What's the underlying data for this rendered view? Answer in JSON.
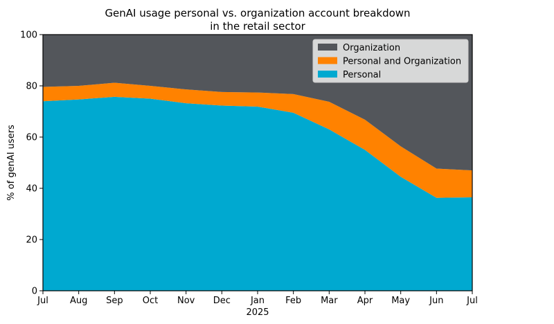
{
  "chart_data": {
    "type": "area",
    "stacked": true,
    "title_line1": "GenAI usage personal vs. organization account breakdown",
    "title_line2": "in the retail sector",
    "xlabel": "",
    "ylabel": "% of genAI users",
    "ylim": [
      0,
      100
    ],
    "yticks": [
      0,
      20,
      40,
      60,
      80,
      100
    ],
    "xticks": [
      "Jul",
      "Aug",
      "Sep",
      "Oct",
      "Nov",
      "Dec",
      "Jan",
      "Feb",
      "Mar",
      "Apr",
      "May",
      "Jun",
      "Jul"
    ],
    "year_label": "2025",
    "year_label_under": "Jan",
    "grid": false,
    "legend_position": "top-right",
    "series": [
      {
        "name": "Personal",
        "color": "#00a9d0",
        "values": [
          74,
          74.7,
          75.7,
          75,
          73.2,
          72.3,
          71.9,
          69.5,
          63,
          55,
          44.5,
          36.3,
          36.5
        ]
      },
      {
        "name": "Personal and Organization",
        "color": "#ff8200",
        "values": [
          5.6,
          5.3,
          5.5,
          5,
          5.4,
          5.3,
          5.5,
          7.3,
          10.8,
          11.8,
          11.9,
          11.4,
          10.5
        ]
      },
      {
        "name": "Organization",
        "color": "#53565b",
        "values": [
          20.4,
          20,
          18.8,
          20,
          21.4,
          22.4,
          22.6,
          23.2,
          26.2,
          33.2,
          43.6,
          52.3,
          53
        ]
      }
    ],
    "legend_order": [
      "Organization",
      "Personal and Organization",
      "Personal"
    ]
  }
}
